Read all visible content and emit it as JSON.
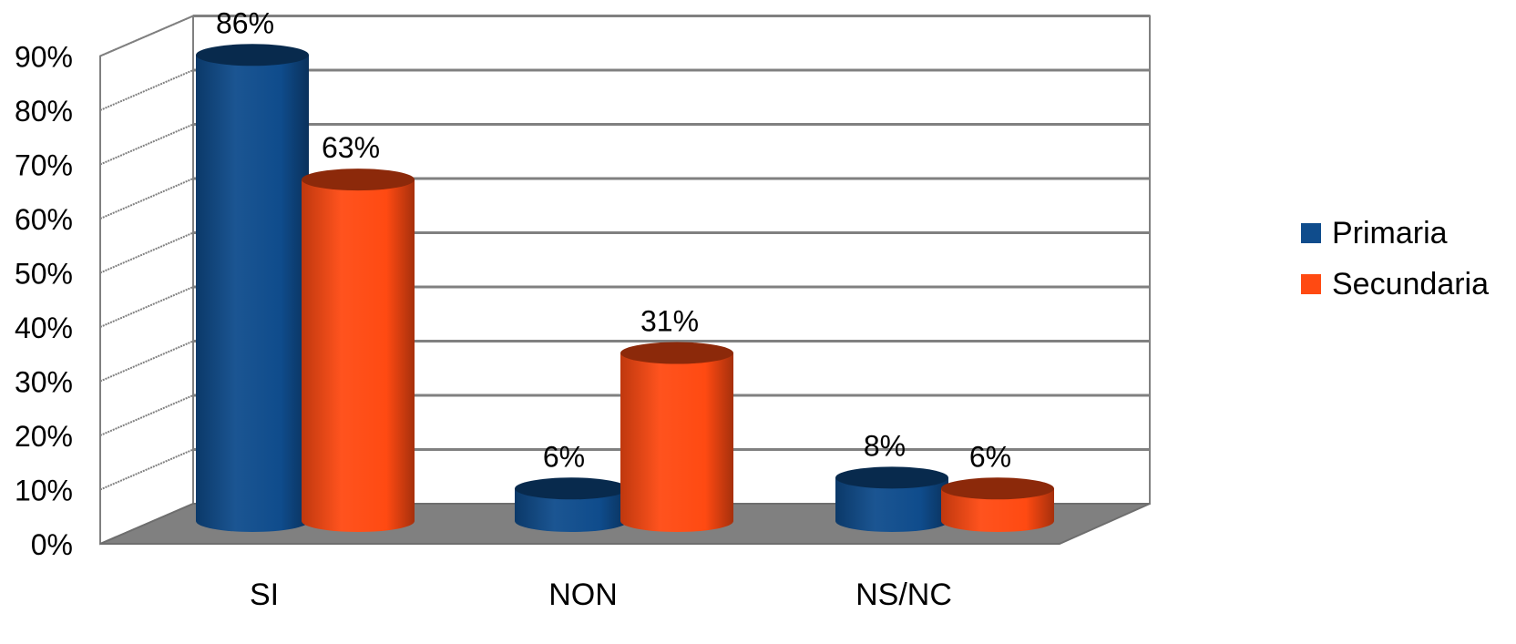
{
  "chart_data": {
    "type": "bar",
    "categories": [
      "SI",
      "NON",
      "NS/NC"
    ],
    "series": [
      {
        "name": "Primaria",
        "values": [
          86,
          6,
          8
        ],
        "labels": [
          "86%",
          "6%",
          "8%"
        ],
        "color": "#0f4c8c"
      },
      {
        "name": "Secundaria",
        "values": [
          63,
          31,
          6
        ],
        "labels": [
          "63%",
          "31%",
          "6%"
        ],
        "color": "#ff4a12"
      }
    ],
    "y_ticks": [
      "0%",
      "10%",
      "20%",
      "30%",
      "40%",
      "50%",
      "60%",
      "70%",
      "80%",
      "90%"
    ],
    "ylim": [
      0,
      90
    ],
    "grid": true,
    "legend_position": "right",
    "bar_shape": "3d-cylinder",
    "floor_color": "#808080",
    "grid_color": "#808080"
  }
}
